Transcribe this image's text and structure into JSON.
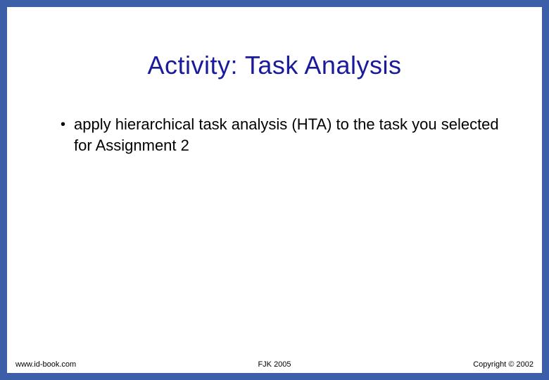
{
  "slide": {
    "title": "Activity: Task Analysis",
    "title_color": "#1a1a9c",
    "title_fontsize": 36,
    "border_color": "#3c5fa8",
    "border_width": 10,
    "background": "#ffffff",
    "bullets": [
      {
        "text": "apply hierarchical task analysis (HTA) to the task you selected for Assignment 2"
      }
    ],
    "bullet_fontsize": 22,
    "bullet_color": "#000000"
  },
  "footer": {
    "left": "www.id-book.com",
    "center": "FJK 2005",
    "right": "Copyright © 2002",
    "fontsize": 11,
    "color": "#000000"
  }
}
